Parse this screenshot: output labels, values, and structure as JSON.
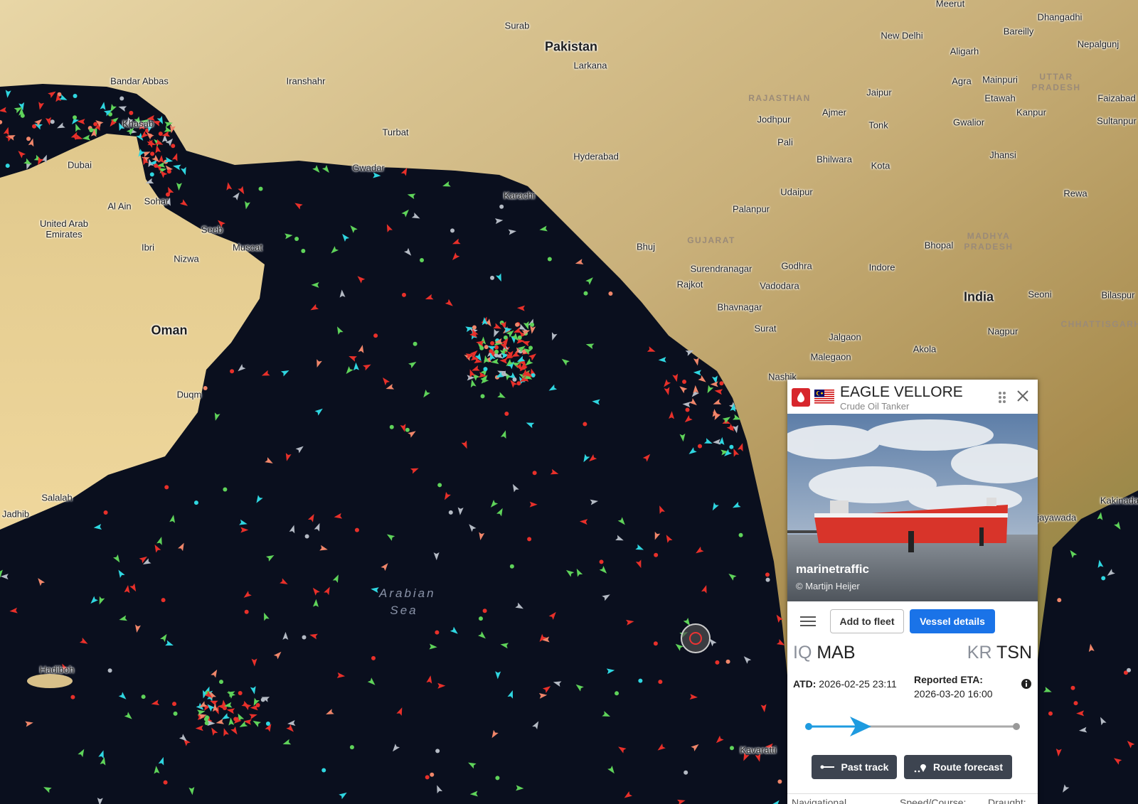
{
  "map": {
    "countries": [
      "Pakistan",
      "Oman",
      "India"
    ],
    "seas": [
      "Arabian Sea"
    ],
    "regions": [
      "RAJASTHAN",
      "GUJARAT",
      "MADHYA PRADESH",
      "UTTAR PRADESH",
      "CHHATTISGARH"
    ],
    "cities": [
      "Meerut",
      "New Delhi",
      "Dhangadhi",
      "Bareilly",
      "Nepalgunj",
      "Aligarh",
      "Agra",
      "Mainpuri",
      "Jaipur",
      "Etawah",
      "Faizabad",
      "Kanpur",
      "Sultanpur",
      "Ajmer",
      "Jodhpur",
      "Tonk",
      "Gwalior",
      "Pali",
      "Bhilwara",
      "Kota",
      "Jhansi",
      "Udaipur",
      "Rewa",
      "Palanpur",
      "Bhopal",
      "Bhuj",
      "Surendranagar",
      "Godhra",
      "Rajkot",
      "Indore",
      "Vadodara",
      "Bhavnagar",
      "Seoni",
      "Bilaspur",
      "Surat",
      "Jalgaon",
      "Nagpur",
      "Akola",
      "Malegaon",
      "Nashik",
      "Kakinada",
      "Vijayawada",
      "Surab",
      "Larkana",
      "Hyderabad",
      "Karachi",
      "Turbat",
      "Gwadar",
      "Iranshahr",
      "Bandar Abbas",
      "Khasab",
      "Dubai",
      "Al Ain",
      "United Arab Emirates",
      "Sohar",
      "Seeb",
      "Muscat",
      "Ibri",
      "Nizwa",
      "Duqm",
      "Salalah",
      "Jadhib",
      "Hadiboh",
      "Kavaratti"
    ]
  },
  "vessel_panel": {
    "name": "EAGLE VELLORE",
    "type": "Crude Oil Tanker",
    "photo_brand": "marinetraffic",
    "photo_credit": "© Martijn Heijer",
    "add_to_fleet": "Add to fleet",
    "vessel_details": "Vessel details",
    "origin": {
      "country": "IQ",
      "port": "MAB"
    },
    "destination": {
      "country": "KR",
      "port": "TSN"
    },
    "atd_label": "ATD:",
    "atd": "2026-02-25 23:11",
    "eta_label": "Reported ETA:",
    "eta": "2026-03-20 16:00",
    "past_track": "Past track",
    "route_forecast": "Route forecast",
    "footer": [
      "Navigational",
      "Speed/Course:",
      "Draught:"
    ]
  }
}
